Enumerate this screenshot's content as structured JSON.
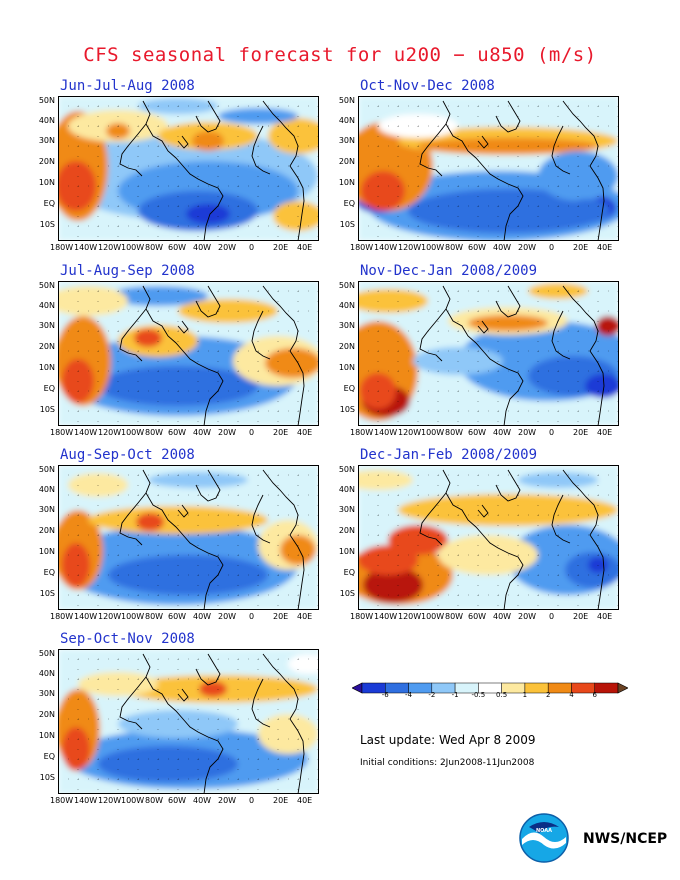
{
  "title": "CFS seasonal forecast for u200 − u850 (m/s)",
  "lat_labels": [
    "50N",
    "40N",
    "30N",
    "20N",
    "10N",
    "EQ",
    "10S"
  ],
  "lon_labels": [
    "180W",
    "140W",
    "120W",
    "100W",
    "80W",
    "60W",
    "40W",
    "20W",
    "0",
    "20E",
    "40E"
  ],
  "panels": [
    {
      "label": "Jun-Jul-Aug 2008"
    },
    {
      "label": "Oct-Nov-Dec 2008"
    },
    {
      "label": "Jul-Aug-Sep 2008"
    },
    {
      "label": "Nov-Dec-Jan 2008/2009"
    },
    {
      "label": "Aug-Sep-Oct 2008"
    },
    {
      "label": "Dec-Jan-Feb 2008/2009"
    },
    {
      "label": "Sep-Oct-Nov 2008"
    }
  ],
  "legend": {
    "ticks": [
      "-6",
      "-4",
      "-2",
      "-1",
      "-0.5",
      "0.5",
      "1",
      "2",
      "4",
      "6"
    ],
    "colors": [
      "#2a0f9c",
      "#1a3bd6",
      "#2f6fe0",
      "#4f9bf0",
      "#8fc8f8",
      "#d8f4fb",
      "#ffffff",
      "#fde9a0",
      "#fbc23a",
      "#f08a15",
      "#e8481a",
      "#b81408",
      "#6b4224"
    ]
  },
  "last_update": "Last update: Wed Apr 8 2009",
  "initial_conditions": "Initial conditions: 2Jun2008-11Jun2008",
  "agency": "NWS/NCEP"
}
